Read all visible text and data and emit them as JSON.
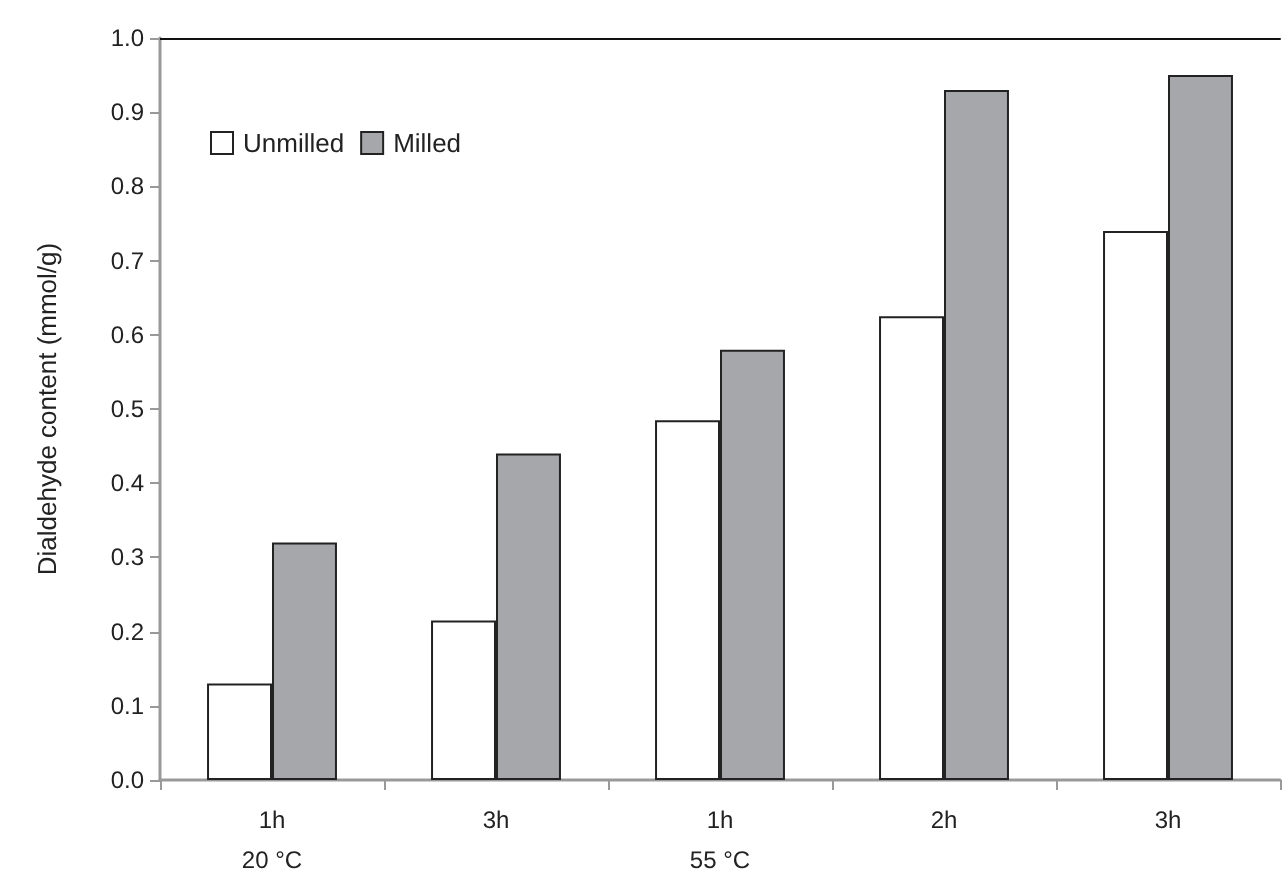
{
  "chart_data": {
    "type": "bar",
    "ylabel": "Dialdehyde content (mmol/g)",
    "categories": [
      "1h\n20 °C",
      "3h",
      "1h\n55 °C",
      "2h",
      "3h"
    ],
    "series": [
      {
        "name": "Unmilled",
        "color": "#ffffff",
        "values": [
          0.13,
          0.215,
          0.485,
          0.625,
          0.74
        ]
      },
      {
        "name": "Milled",
        "color": "#a6a7aa",
        "values": [
          0.32,
          0.44,
          0.58,
          0.93,
          0.95
        ]
      }
    ],
    "ylim": [
      0,
      1
    ],
    "yticks": [
      {
        "value": 0,
        "label": "0.0"
      },
      0.1,
      0.2,
      0.3,
      0.4,
      0.5,
      0.6,
      0.7,
      0.8,
      0.9,
      {
        "value": 1,
        "label": "1.0"
      }
    ],
    "grid": false,
    "legend": "top left",
    "marker": "square"
  }
}
